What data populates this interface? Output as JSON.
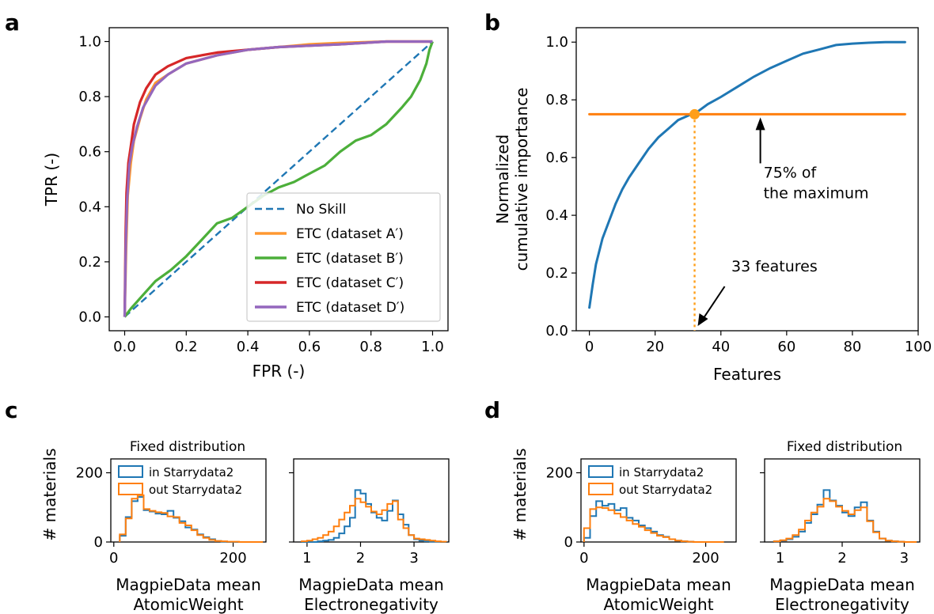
{
  "panels": {
    "a": "a",
    "b": "b",
    "c": "c",
    "d": "d"
  },
  "chart_data": [
    {
      "id": "a",
      "type": "line",
      "xlabel": "FPR (-)",
      "ylabel": "TPR (-)",
      "xlim": [
        0,
        1
      ],
      "ylim": [
        0,
        1
      ],
      "xticks": [
        "0.0",
        "0.2",
        "0.4",
        "0.6",
        "0.8",
        "1.0"
      ],
      "yticks": [
        "0.0",
        "0.2",
        "0.4",
        "0.6",
        "0.8",
        "1.0"
      ],
      "legend_position": "lower-right",
      "series": [
        {
          "name": "No Skill",
          "color": "#1f77b4",
          "dashed": true,
          "x": [
            0,
            1
          ],
          "y": [
            0,
            1
          ]
        },
        {
          "name": "ETC (dataset A′)",
          "color": "#ff9830",
          "x": [
            0,
            0.005,
            0.01,
            0.02,
            0.03,
            0.05,
            0.07,
            0.1,
            0.14,
            0.2,
            0.3,
            0.4,
            0.5,
            0.6,
            0.7,
            0.85,
            1.0
          ],
          "y": [
            0,
            0.25,
            0.44,
            0.56,
            0.64,
            0.72,
            0.79,
            0.85,
            0.88,
            0.92,
            0.95,
            0.97,
            0.98,
            0.99,
            0.995,
            1.0,
            1.0
          ]
        },
        {
          "name": "ETC (dataset B′)",
          "color": "#4caf3a",
          "x": [
            0,
            0.02,
            0.06,
            0.1,
            0.15,
            0.2,
            0.25,
            0.3,
            0.35,
            0.4,
            0.45,
            0.5,
            0.55,
            0.6,
            0.65,
            0.7,
            0.75,
            0.8,
            0.85,
            0.9,
            0.93,
            0.96,
            0.98,
            0.99,
            1.0
          ],
          "y": [
            0,
            0.03,
            0.08,
            0.13,
            0.17,
            0.22,
            0.28,
            0.34,
            0.36,
            0.4,
            0.44,
            0.47,
            0.49,
            0.52,
            0.55,
            0.6,
            0.64,
            0.66,
            0.7,
            0.76,
            0.8,
            0.86,
            0.92,
            0.97,
            1.0
          ]
        },
        {
          "name": "ETC (dataset C′)",
          "color": "#d62728",
          "x": [
            0,
            0.003,
            0.006,
            0.012,
            0.02,
            0.03,
            0.05,
            0.07,
            0.1,
            0.14,
            0.2,
            0.3,
            0.4,
            0.5,
            0.7,
            0.85,
            1.0
          ],
          "y": [
            0,
            0.3,
            0.45,
            0.56,
            0.62,
            0.7,
            0.78,
            0.83,
            0.88,
            0.91,
            0.94,
            0.96,
            0.97,
            0.98,
            0.99,
            1.0,
            1.0
          ]
        },
        {
          "name": "ETC (dataset D′)",
          "color": "#9467bd",
          "x": [
            0,
            0.004,
            0.008,
            0.015,
            0.025,
            0.04,
            0.06,
            0.08,
            0.1,
            0.14,
            0.2,
            0.3,
            0.4,
            0.5,
            0.7,
            0.85,
            1.0
          ],
          "y": [
            0,
            0.28,
            0.42,
            0.55,
            0.62,
            0.69,
            0.76,
            0.8,
            0.84,
            0.88,
            0.92,
            0.95,
            0.97,
            0.98,
            0.99,
            1.0,
            1.0
          ]
        }
      ]
    },
    {
      "id": "b",
      "type": "line",
      "xlabel": "Features",
      "ylabel": "Normalized cumulative importance",
      "ylabel_lines": [
        "Normalized",
        "cumulative importance"
      ],
      "xlim": [
        -4,
        100
      ],
      "ylim": [
        0,
        1.05
      ],
      "xticks": [
        "0",
        "20",
        "40",
        "60",
        "80",
        "100"
      ],
      "yticks": [
        "0.0",
        "0.2",
        "0.4",
        "0.6",
        "0.8",
        "1.0"
      ],
      "series": [
        {
          "name": "",
          "color": "#1f77b4",
          "x": [
            0,
            1,
            2,
            4,
            6,
            8,
            10,
            12,
            15,
            18,
            21,
            24,
            27,
            30,
            33,
            36,
            40,
            45,
            50,
            55,
            60,
            65,
            70,
            75,
            80,
            85,
            90,
            93,
            96
          ],
          "y": [
            0.08,
            0.16,
            0.23,
            0.32,
            0.38,
            0.44,
            0.49,
            0.53,
            0.58,
            0.63,
            0.67,
            0.7,
            0.73,
            0.745,
            0.76,
            0.785,
            0.81,
            0.845,
            0.88,
            0.91,
            0.935,
            0.96,
            0.975,
            0.99,
            0.995,
            0.998,
            1.0,
            1.0,
            1.0
          ]
        },
        {
          "name": "",
          "color": "#ff7f0e",
          "x": [
            0,
            96
          ],
          "y": [
            0.75,
            0.75
          ]
        }
      ],
      "marker": {
        "x": 32,
        "y": 0.75,
        "color": "#ff9f1a"
      },
      "annotations": [
        {
          "text_lines": [
            "75% of",
            "the maximum"
          ],
          "arrow_to": [
            52,
            0.75
          ]
        },
        {
          "text": "33 features",
          "arrow_to": [
            32,
            0.0
          ]
        }
      ]
    },
    {
      "id": "c",
      "type": "histogram",
      "subtitle": "Fixed distribution",
      "ylabel": "# materials",
      "legend": [
        "in Starrydata2",
        "out Starrydata2"
      ],
      "subplots": [
        {
          "xlabel_lines": [
            "MagpieData mean",
            "AtomicWeight"
          ],
          "xlim": [
            -5,
            255
          ],
          "ylim": [
            0,
            240
          ],
          "xticks": [
            "0",
            "200"
          ],
          "yticks": [
            "0",
            "200"
          ],
          "bin_start": 10,
          "bin_width": 10,
          "in": [
            18,
            72,
            118,
            130,
            92,
            88,
            82,
            80,
            90,
            70,
            60,
            42,
            36,
            22,
            14,
            8,
            3,
            1,
            0,
            0,
            0,
            0,
            0,
            0
          ],
          "out": [
            22,
            68,
            125,
            135,
            95,
            90,
            86,
            84,
            74,
            72,
            55,
            48,
            34,
            20,
            12,
            6,
            3,
            2,
            1,
            1,
            0,
            0,
            0,
            0
          ]
        },
        {
          "xlabel_lines": [
            "MagpieData mean",
            "Electronegativity"
          ],
          "xlim": [
            0.75,
            3.65
          ],
          "ylim": [
            0,
            240
          ],
          "xticks": [
            "1",
            "2",
            "3"
          ],
          "yticks": [],
          "bin_start": 0.9,
          "bin_width": 0.1,
          "in": [
            0,
            0,
            0,
            2,
            4,
            6,
            12,
            25,
            45,
            70,
            150,
            140,
            110,
            85,
            70,
            62,
            90,
            120,
            80,
            50,
            20,
            8,
            4,
            2,
            1,
            1,
            0
          ],
          "out": [
            2,
            4,
            8,
            12,
            20,
            30,
            45,
            65,
            85,
            105,
            125,
            115,
            102,
            88,
            80,
            92,
            110,
            118,
            65,
            40,
            20,
            10,
            8,
            6,
            4,
            2,
            1
          ]
        }
      ]
    },
    {
      "id": "d",
      "type": "histogram",
      "subtitle": "Fixed distribution",
      "ylabel": "# materials",
      "legend": [
        "in Starrydata2",
        "out Starrydata2"
      ],
      "subplots": [
        {
          "xlabel_lines": [
            "MagpieData mean",
            "AtomicWeight"
          ],
          "xlim": [
            -5,
            250
          ],
          "ylim": [
            0,
            240
          ],
          "xticks": [
            "0",
            "200"
          ],
          "yticks": [
            "0",
            "200"
          ],
          "bin_start": 0,
          "bin_width": 10,
          "in": [
            12,
            75,
            118,
            105,
            110,
            92,
            98,
            70,
            62,
            48,
            40,
            30,
            20,
            15,
            8,
            4,
            2,
            1,
            0,
            0,
            0,
            0,
            0
          ],
          "out": [
            40,
            95,
            100,
            98,
            92,
            82,
            72,
            62,
            52,
            44,
            34,
            26,
            18,
            14,
            8,
            4,
            2,
            1,
            0,
            0,
            0,
            0,
            0
          ]
        },
        {
          "xlabel_lines": [
            "MagpieData mean",
            "Electronegativity"
          ],
          "xlim": [
            0.75,
            3.25
          ],
          "ylim": [
            0,
            240
          ],
          "xticks": [
            "1",
            "2",
            "3"
          ],
          "yticks": [],
          "bin_start": 0.9,
          "bin_width": 0.1,
          "in": [
            2,
            4,
            8,
            15,
            30,
            55,
            80,
            108,
            150,
            120,
            105,
            85,
            75,
            100,
            115,
            62,
            30,
            10,
            4,
            2,
            1,
            0,
            0
          ],
          "out": [
            2,
            5,
            10,
            20,
            36,
            62,
            85,
            102,
            125,
            118,
            102,
            90,
            80,
            92,
            100,
            60,
            28,
            10,
            4,
            2,
            1,
            0,
            0
          ]
        }
      ]
    }
  ]
}
